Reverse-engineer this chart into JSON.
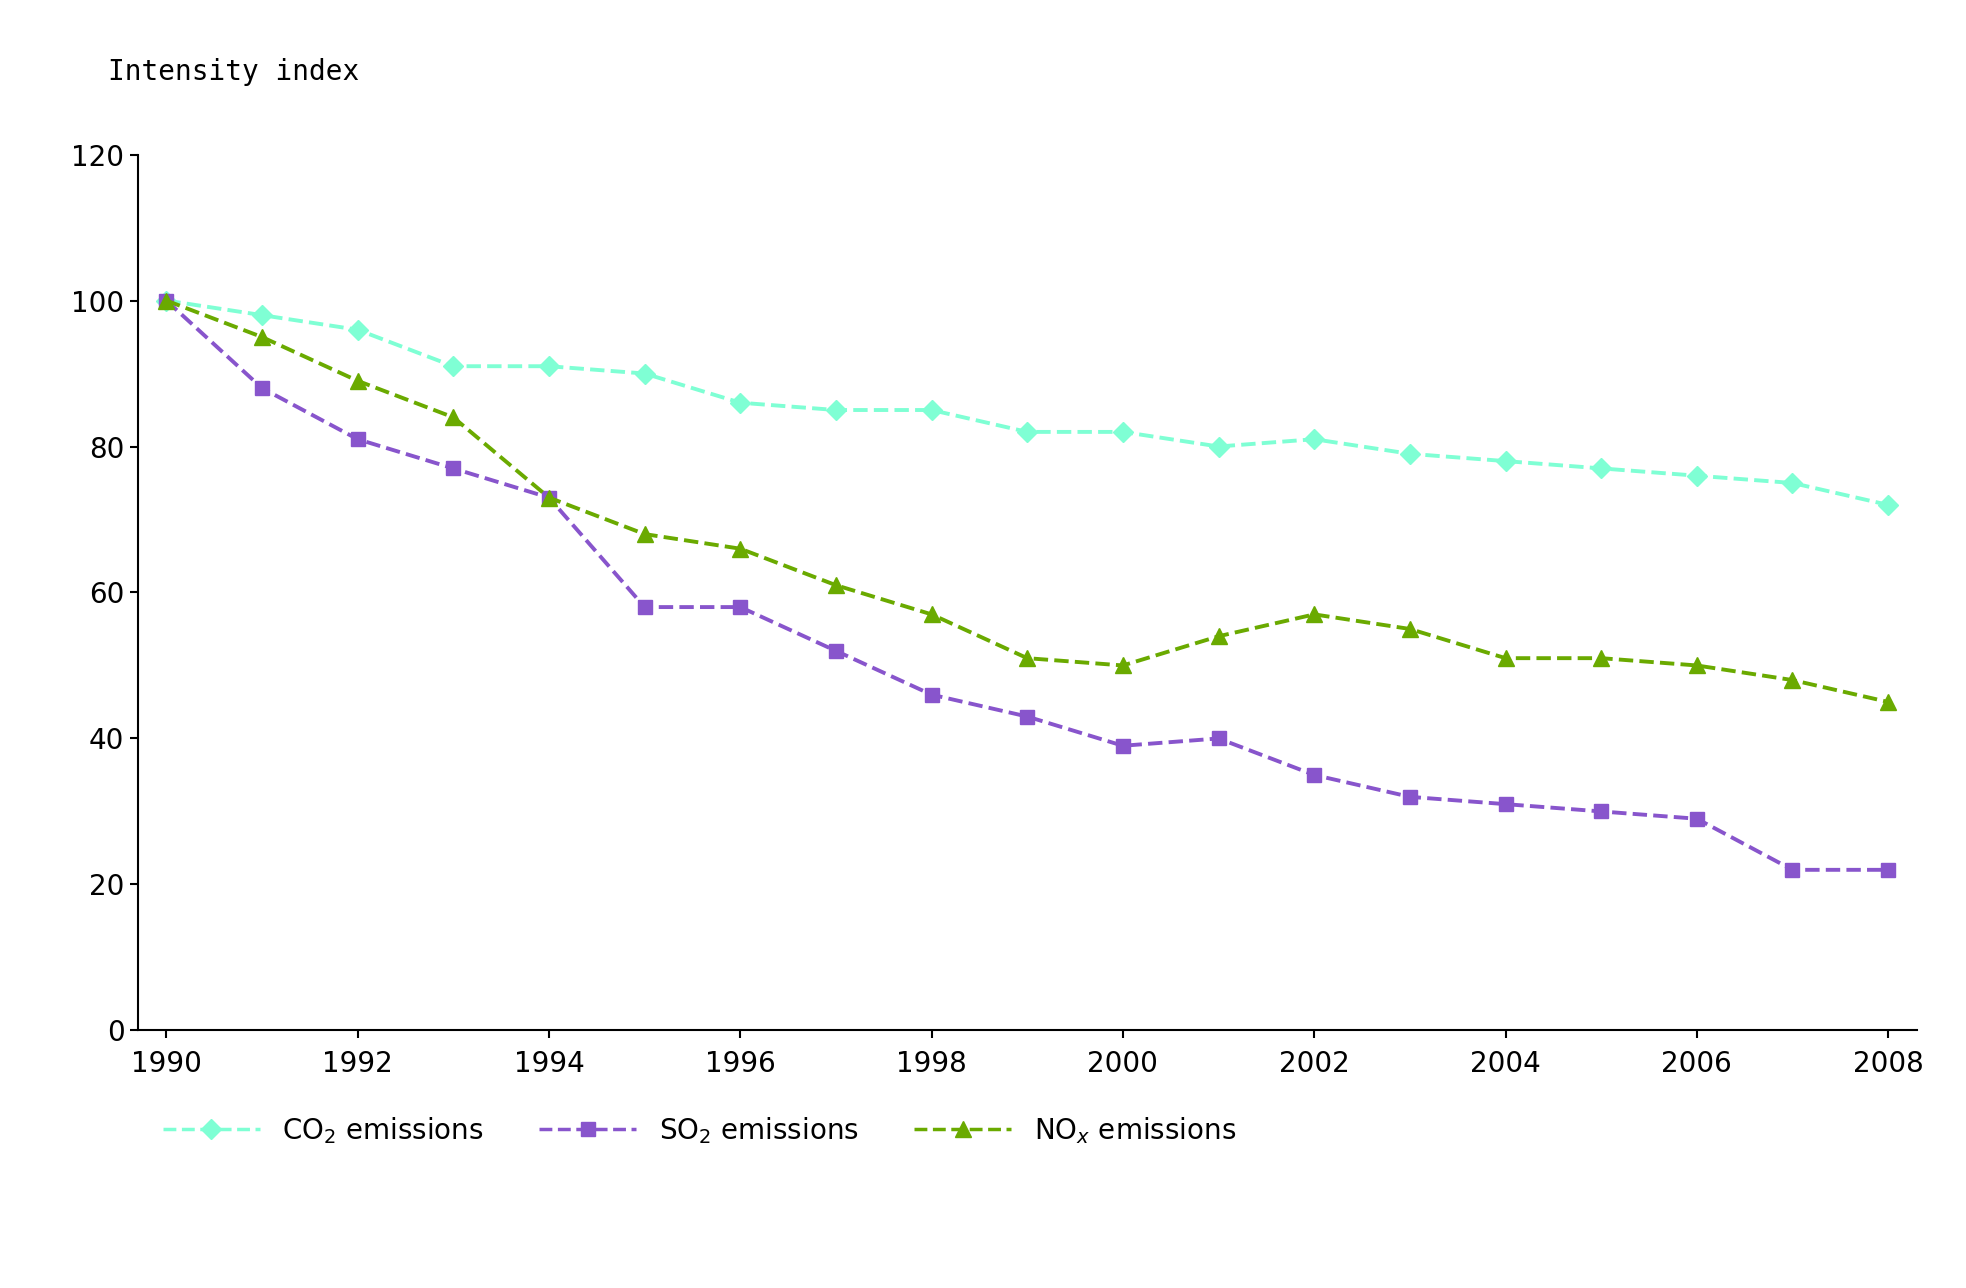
{
  "years": [
    1990,
    1991,
    1992,
    1993,
    1994,
    1995,
    1996,
    1997,
    1998,
    1999,
    2000,
    2001,
    2002,
    2003,
    2004,
    2005,
    2006,
    2007,
    2008
  ],
  "co2": [
    100,
    98,
    96,
    91,
    91,
    90,
    86,
    85,
    85,
    82,
    82,
    80,
    81,
    79,
    78,
    77,
    76,
    75,
    72
  ],
  "so2": [
    100,
    88,
    81,
    77,
    73,
    58,
    58,
    52,
    46,
    43,
    39,
    40,
    35,
    32,
    31,
    30,
    29,
    22,
    22
  ],
  "nox": [
    100,
    95,
    89,
    84,
    73,
    68,
    66,
    61,
    57,
    51,
    50,
    54,
    57,
    55,
    51,
    51,
    50,
    48,
    45
  ],
  "co2_color": "#7fffd4",
  "so2_color": "#8855cc",
  "nox_color": "#6aaa00",
  "ylabel": "Intensity index",
  "ylim": [
    0,
    120
  ],
  "yticks": [
    0,
    20,
    40,
    60,
    80,
    100,
    120
  ],
  "xlim_min": 1990,
  "xlim_max": 2008,
  "xticks": [
    1990,
    1992,
    1994,
    1996,
    1998,
    2000,
    2002,
    2004,
    2006,
    2008
  ],
  "legend_co2": "CO$_2$ emissions",
  "legend_so2": "SO$_2$ emissions",
  "legend_nox": "NO$_x$ emissions",
  "bg_color": "#ffffff",
  "figwidth": 19.66,
  "figheight": 12.88,
  "dpi": 100
}
